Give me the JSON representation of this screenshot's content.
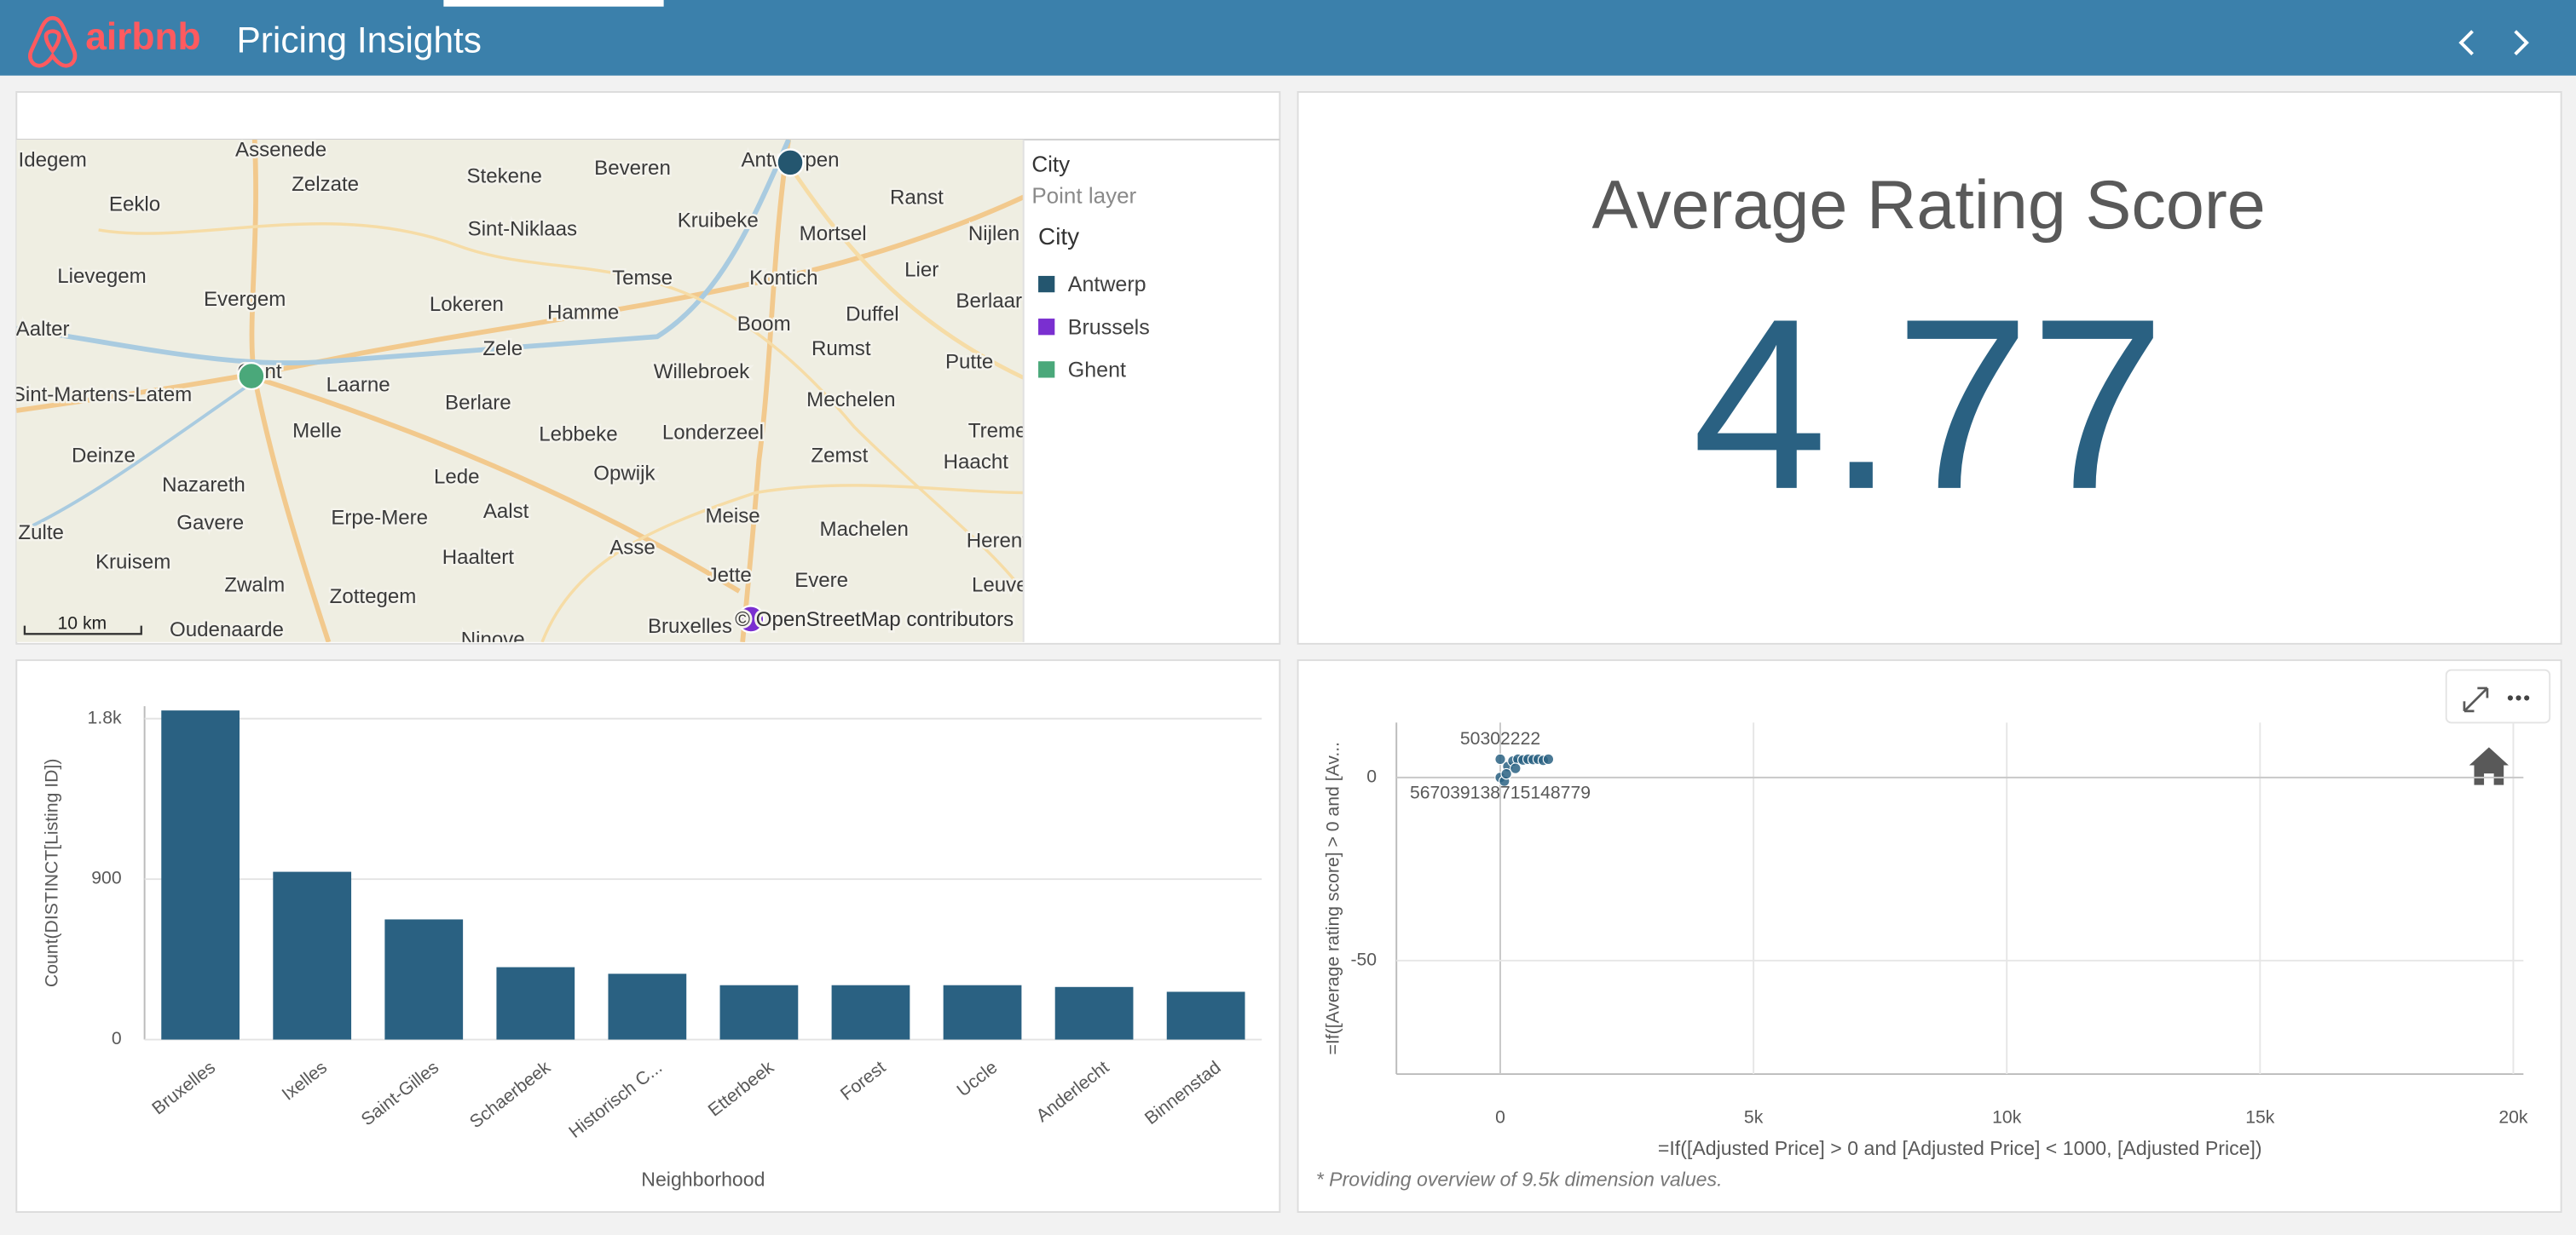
{
  "header": {
    "logo": "airbnb",
    "title": "Pricing Insights"
  },
  "map": {
    "legend_title": "City",
    "legend_subtitle": "Point layer",
    "legend_heading": "City",
    "cities": [
      {
        "name": "Antwerp",
        "color": "#24566f"
      },
      {
        "name": "Brussels",
        "color": "#7a2fd0"
      },
      {
        "name": "Ghent",
        "color": "#4aa87a"
      }
    ],
    "place_labels": [
      "Assenede",
      "Idegem",
      "Zelzate",
      "Stekene",
      "Beveren",
      "Antwerpen",
      "Eeklo",
      "Sint-Niklaas",
      "Kruibeke",
      "Mortsel",
      "Ranst",
      "Nijlen",
      "Lievegem",
      "Temse",
      "Kontich",
      "Lier",
      "Evergem",
      "Lokeren",
      "Hamme",
      "Duffel",
      "Berlaar",
      "Aalter",
      "Boom",
      "Rumst",
      "Zele",
      "Putte",
      "Gent",
      "Willebroek",
      "Laarne",
      "Mechelen",
      "Sint-Martens-Latem",
      "Berlare",
      "Lebbeke",
      "Londerzeel",
      "Melle",
      "Tremelo",
      "Zemst",
      "Haacht",
      "Deinze",
      "Nazareth",
      "Opwijk",
      "Lede",
      "Aalst",
      "Erpe-Mere",
      "Gavere",
      "Zulte",
      "Meise",
      "Machelen",
      "Herent",
      "Kruisem",
      "Haaltert",
      "Asse",
      "Zwalm",
      "Jette",
      "Evere",
      "Leuven",
      "Zottegem",
      "Oudenaarde",
      "Ninove",
      "Bruxelles"
    ],
    "scale_label": "10 km",
    "attribution": "© OpenStreetMap contributors"
  },
  "kpi": {
    "title": "Average Rating Score",
    "value": 4.77,
    "color": "#2a6182"
  },
  "chart_data": [
    {
      "type": "bar",
      "y_label": "Count(DISTINCT[Listing ID])",
      "x_label": "Neighborhood",
      "categories": [
        "Bruxelles",
        "Ixelles",
        "Saint-Gilles",
        "Schaerbeek",
        "Historisch C...",
        "Etterbeek",
        "Forest",
        "Uccle",
        "Anderlecht",
        "Binnenstad"
      ],
      "values": [
        1846,
        941,
        674,
        406,
        369,
        305,
        305,
        305,
        295,
        268
      ],
      "color": "#2a6182",
      "ylim": [
        0,
        1870
      ],
      "yticks": [
        0,
        900,
        {
          "value": 1800,
          "label": "1.8k"
        }
      ],
      "grid": true
    },
    {
      "type": "scatter",
      "x_label": "=If([Adjusted Price] > 0 and [Adjusted Price] < 1000, [Adjusted Price])",
      "y_label": "=If([Average rating score] > 0 and [Av...",
      "footnote": "* Providing overview of 9.5k dimension values.",
      "x": [
        0,
        0,
        80,
        150,
        250,
        350,
        450,
        550,
        650,
        750,
        850,
        950,
        120,
        300
      ],
      "values": [
        5,
        0,
        -1,
        3,
        4.5,
        5,
        4.8,
        5,
        4.9,
        5,
        4.7,
        5,
        1,
        2.5
      ],
      "point_labels": [
        "50302222",
        "567039138715148779",
        null,
        null,
        null,
        null,
        null,
        null,
        null,
        null,
        null,
        null,
        null,
        null
      ],
      "color": "#2a6182",
      "xlim": [
        -2050,
        20200
      ],
      "ylim": [
        -81,
        15
      ],
      "xticks": [
        0,
        {
          "value": 5000,
          "label": "5k"
        },
        {
          "value": 10000,
          "label": "10k"
        },
        {
          "value": 15000,
          "label": "15k"
        },
        {
          "value": 20000,
          "label": "20k"
        }
      ],
      "yticks": [
        0,
        -50
      ],
      "grid": true
    }
  ]
}
